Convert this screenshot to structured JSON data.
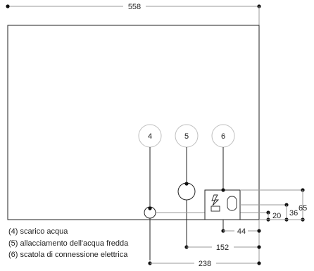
{
  "dimensions": {
    "width_total": "558",
    "connection_box_height": "65",
    "box_inner_height": "36",
    "drain_height": "20",
    "box_offset": "44",
    "water_offset": "152",
    "drain_offset": "238"
  },
  "callouts": [
    {
      "number": "4"
    },
    {
      "number": "5"
    },
    {
      "number": "6"
    }
  ],
  "legend": [
    "(4) scarico acqua",
    "(5) allacciamento dell'acqua fredda",
    "(6) scatola di connessione elettrica"
  ],
  "colors": {
    "line": "#222222",
    "dim_line": "#9a9a9a",
    "callout_circle": "#bfbfbf"
  },
  "icons": {
    "electric_symbol": "lightning-bolt-icon"
  }
}
